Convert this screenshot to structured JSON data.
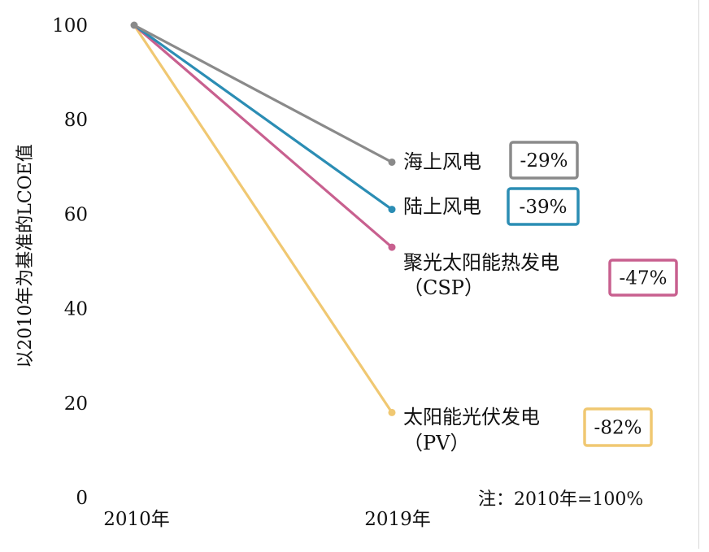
{
  "chart_data": {
    "type": "line",
    "title": "",
    "xlabel": "",
    "ylabel": "以2010年为基准的LCOE值",
    "x": [
      "2010年",
      "2019年"
    ],
    "ylim": [
      0,
      100
    ],
    "yticks": [
      "0",
      "20",
      "40",
      "60",
      "80",
      "100"
    ],
    "series": [
      {
        "name": "海上风电",
        "values": [
          100,
          71
        ],
        "change": "-29%",
        "color": "#8a8a8a"
      },
      {
        "name": "陆上风电",
        "values": [
          100,
          61
        ],
        "change": "-39%",
        "color": "#2b8db4"
      },
      {
        "name": "聚光太阳能热发电",
        "name_sub": "（CSP）",
        "values": [
          100,
          53
        ],
        "change": "-47%",
        "color": "#c8608f"
      },
      {
        "name": "太阳能光伏发电",
        "name_sub": "（PV）",
        "values": [
          100,
          18
        ],
        "change": "-82%",
        "color": "#f0c872"
      }
    ],
    "note": "注：2010年=100%",
    "grid": false,
    "legend": "none"
  }
}
